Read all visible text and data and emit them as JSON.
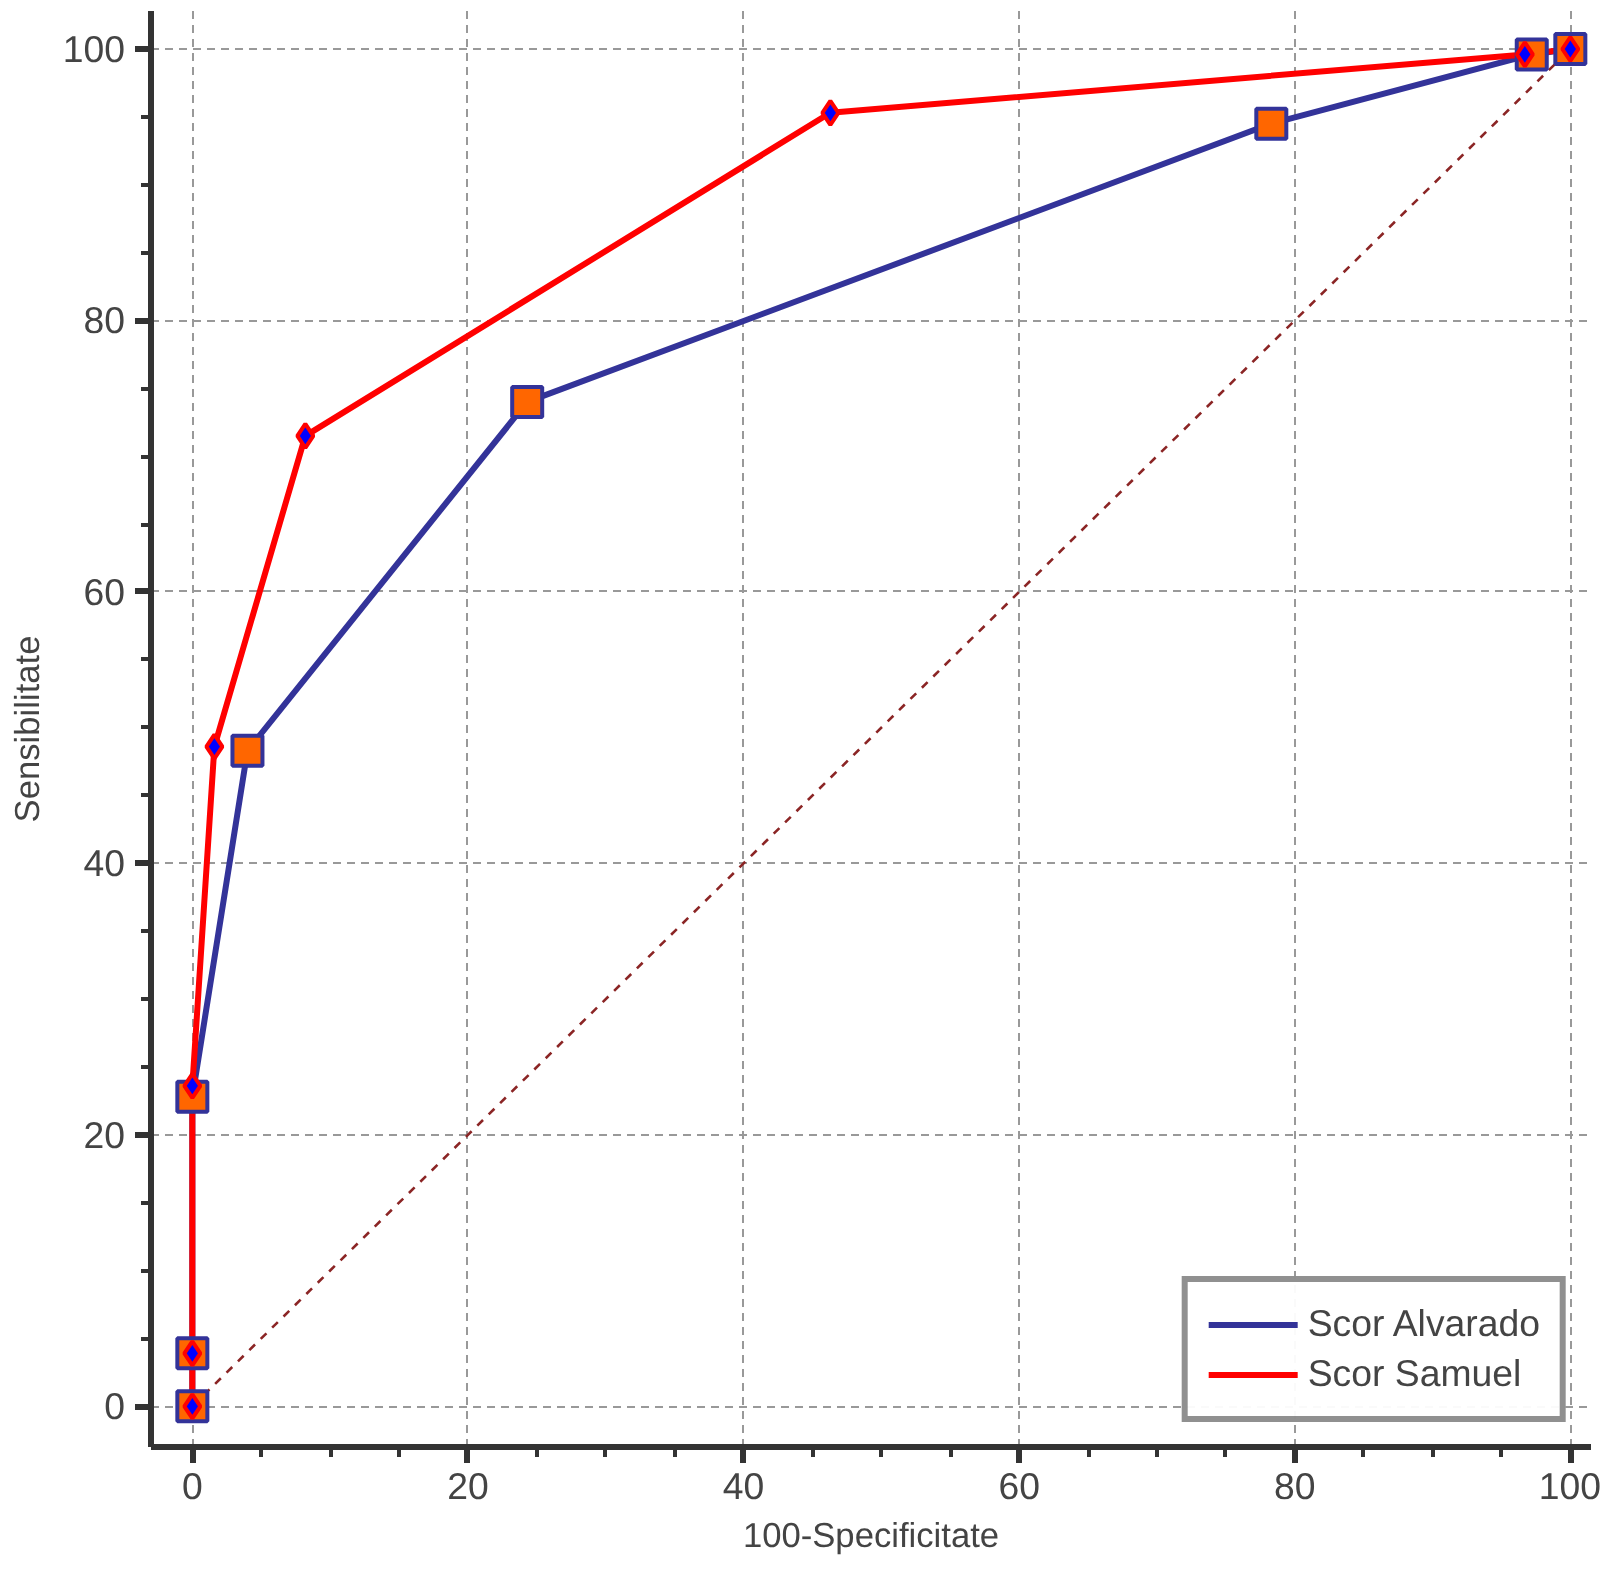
{
  "chart_data": {
    "type": "line",
    "xlabel": "100-Specificitate",
    "ylabel": "Sensibilitate",
    "xlim": [
      -3,
      101.5
    ],
    "ylim": [
      -3,
      102.8
    ],
    "xticks": [
      0,
      20,
      40,
      60,
      80,
      100
    ],
    "yticks": [
      0,
      20,
      40,
      60,
      80,
      100
    ],
    "grid": true,
    "legend": "bottom right",
    "series": [
      {
        "name": "Scor Alvarado",
        "color": "#333399",
        "marker": "square",
        "x": [
          0,
          0,
          0,
          4.0,
          24.3,
          78.3,
          97.2,
          100
        ],
        "values": [
          0,
          3.9,
          22.8,
          48.3,
          74.0,
          94.5,
          99.6,
          100
        ]
      },
      {
        "name": "Scor Samuel",
        "color": "#ff0000",
        "marker": "diamond",
        "x": [
          0,
          0,
          0,
          1.6,
          8.2,
          46.3,
          96.7,
          100
        ],
        "values": [
          0,
          3.9,
          23.6,
          48.6,
          71.5,
          95.3,
          99.6,
          100
        ]
      },
      {
        "color": "#8b2525",
        "marker": "none",
        "line_style": "dashed",
        "x": [
          0,
          100
        ],
        "values": [
          0,
          100
        ]
      }
    ]
  }
}
